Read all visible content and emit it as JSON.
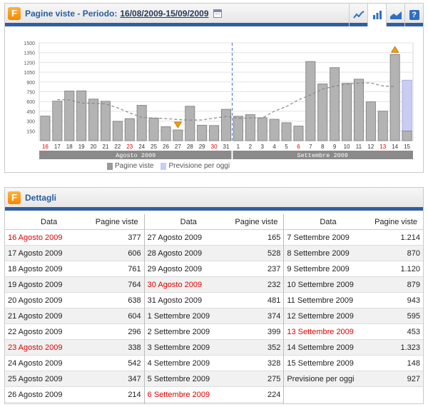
{
  "chart_panel": {
    "title": "Pagine viste - Periodo:",
    "period": "16/08/2009-15/09/2009"
  },
  "toolbar": {
    "icons": [
      "line-chart-icon",
      "bar-chart-icon",
      "area-chart-icon",
      "help-icon"
    ],
    "help_label": "?",
    "active": "bar-chart-icon"
  },
  "chart_data": {
    "type": "bar",
    "categories": [
      "16",
      "17",
      "18",
      "19",
      "20",
      "21",
      "22",
      "23",
      "24",
      "25",
      "26",
      "27",
      "28",
      "29",
      "30",
      "31",
      "1",
      "2",
      "3",
      "4",
      "5",
      "6",
      "7",
      "8",
      "9",
      "10",
      "11",
      "12",
      "13",
      "14",
      "15"
    ],
    "red_categories": [
      "16",
      "23",
      "30",
      "6",
      "13"
    ],
    "series": [
      {
        "name": "Pagine viste",
        "values": [
          377,
          606,
          761,
          764,
          638,
          604,
          296,
          338,
          542,
          347,
          214,
          165,
          528,
          237,
          232,
          481,
          374,
          399,
          352,
          328,
          275,
          224,
          1214,
          870,
          1120,
          879,
          943,
          595,
          453,
          1323,
          148
        ]
      },
      {
        "name": "Previsione per oggi",
        "values": [
          null,
          null,
          null,
          null,
          null,
          null,
          null,
          null,
          null,
          null,
          null,
          null,
          null,
          null,
          null,
          null,
          null,
          null,
          null,
          null,
          null,
          null,
          null,
          null,
          null,
          null,
          null,
          null,
          null,
          null,
          927
        ]
      }
    ],
    "yticks": [
      150,
      300,
      450,
      600,
      750,
      900,
      1050,
      1200,
      1350,
      1500
    ],
    "ylim": [
      0,
      1500
    ],
    "groups": [
      "Agosto 2009",
      "Settembre 2009"
    ],
    "colors": {
      "bar": "#b3b3b3",
      "forecast": "#c9cdf2",
      "trend": "#888888",
      "marker": "#f2a000"
    }
  },
  "legend": {
    "views": "Pagine viste",
    "forecast": "Previsione per oggi"
  },
  "details_panel": {
    "title": "Dettagli"
  },
  "table": {
    "headers": {
      "date": "Data",
      "views": "Pagine viste"
    },
    "columns": [
      [
        {
          "d": "16 Agosto 2009",
          "v": "377",
          "red": true
        },
        {
          "d": "17 Agosto 2009",
          "v": "606"
        },
        {
          "d": "18 Agosto 2009",
          "v": "761"
        },
        {
          "d": "19 Agosto 2009",
          "v": "764"
        },
        {
          "d": "20 Agosto 2009",
          "v": "638"
        },
        {
          "d": "21 Agosto 2009",
          "v": "604"
        },
        {
          "d": "22 Agosto 2009",
          "v": "296"
        },
        {
          "d": "23 Agosto 2009",
          "v": "338",
          "red": true
        },
        {
          "d": "24 Agosto 2009",
          "v": "542"
        },
        {
          "d": "25 Agosto 2009",
          "v": "347"
        },
        {
          "d": "26 Agosto 2009",
          "v": "214"
        }
      ],
      [
        {
          "d": "27 Agosto 2009",
          "v": "165"
        },
        {
          "d": "28 Agosto 2009",
          "v": "528"
        },
        {
          "d": "29 Agosto 2009",
          "v": "237"
        },
        {
          "d": "30 Agosto 2009",
          "v": "232",
          "red": true
        },
        {
          "d": "31 Agosto 2009",
          "v": "481"
        },
        {
          "d": "1 Settembre 2009",
          "v": "374"
        },
        {
          "d": "2 Settembre 2009",
          "v": "399"
        },
        {
          "d": "3 Settembre 2009",
          "v": "352"
        },
        {
          "d": "4 Settembre 2009",
          "v": "328"
        },
        {
          "d": "5 Settembre 2009",
          "v": "275"
        },
        {
          "d": "6 Settembre 2009",
          "v": "224",
          "red": true
        }
      ],
      [
        {
          "d": "7 Settembre 2009",
          "v": "1.214"
        },
        {
          "d": "8 Settembre 2009",
          "v": "870"
        },
        {
          "d": "9 Settembre 2009",
          "v": "1.120"
        },
        {
          "d": "10 Settembre 2009",
          "v": "879"
        },
        {
          "d": "11 Settembre 2009",
          "v": "943"
        },
        {
          "d": "12 Settembre 2009",
          "v": "595"
        },
        {
          "d": "13 Settembre 2009",
          "v": "453",
          "red": true
        },
        {
          "d": "14 Settembre 2009",
          "v": "1.323"
        },
        {
          "d": "15 Settembre 2009",
          "v": "148"
        },
        {
          "d": "Previsione per oggi",
          "v": "927"
        }
      ]
    ]
  }
}
